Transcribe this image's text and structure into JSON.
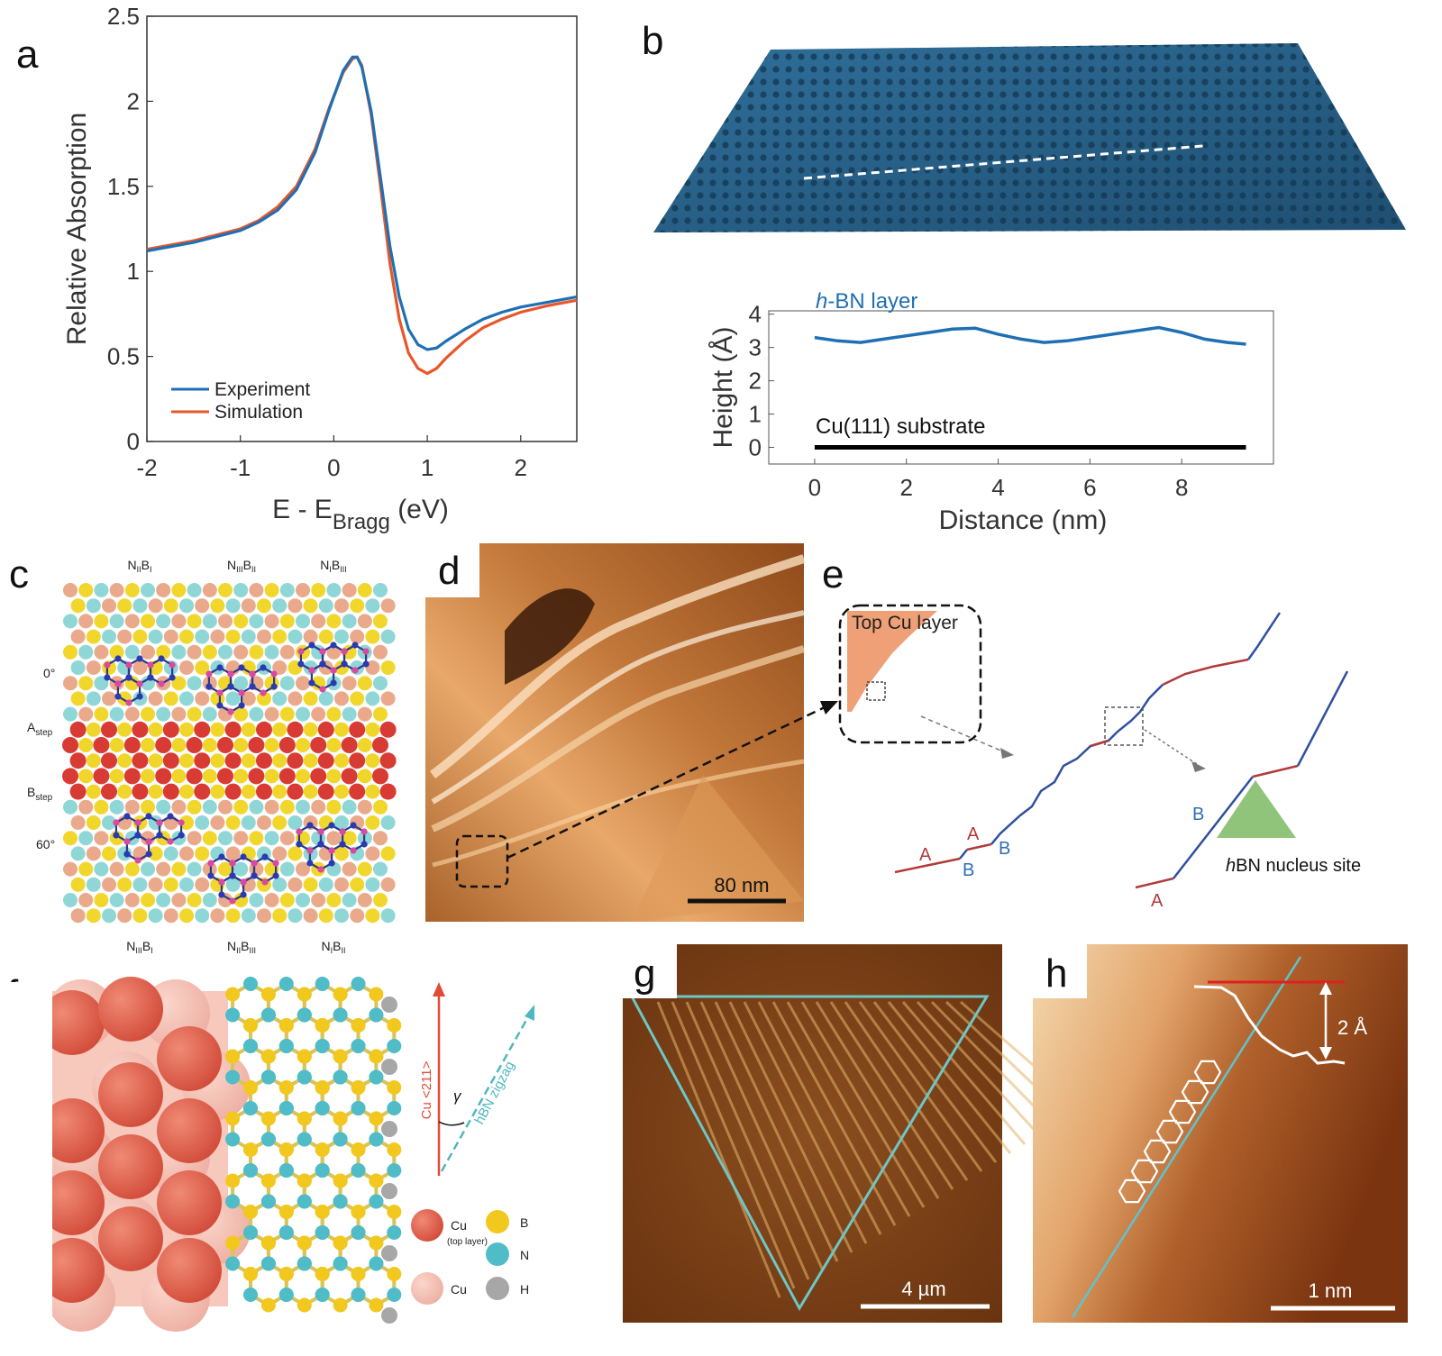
{
  "panels": {
    "a": {
      "letter": "a",
      "legend": {
        "experiment": "Experiment",
        "simulation": "Simulation"
      }
    },
    "b": {
      "letter": "b",
      "hbn_label_italic": "h",
      "hbn_label_rest": "-BN layer",
      "substrate_label": "Cu(111) substrate"
    },
    "c": {
      "letter": "c",
      "top_labels": [
        {
          "N": "N",
          "Nsub": "II",
          "B": "B",
          "Bsub": "I"
        },
        {
          "N": "N",
          "Nsub": "III",
          "B": "B",
          "Bsub": "II"
        },
        {
          "N": "N",
          "Nsub": "I",
          "B": "B",
          "Bsub": "III"
        }
      ],
      "bottom_labels": [
        {
          "N": "N",
          "Nsub": "III",
          "B": "B",
          "Bsub": "I"
        },
        {
          "N": "N",
          "Nsub": "II",
          "B": "B",
          "Bsub": "III"
        },
        {
          "N": "N",
          "Nsub": "I",
          "B": "B",
          "Bsub": "II"
        }
      ],
      "side_labels": {
        "deg0": "0°",
        "astep_main": "A",
        "astep_sub": "step",
        "bstep_main": "B",
        "bstep_sub": "step",
        "deg60": "60°"
      }
    },
    "d": {
      "letter": "d",
      "scalebar": "80 nm"
    },
    "e": {
      "letter": "e",
      "top_cu": "Top Cu layer",
      "labels": [
        "A",
        "A",
        "B",
        "B",
        "B",
        "A"
      ],
      "nucleus_italic": "h",
      "nucleus_rest": "BN nucleus site"
    },
    "f": {
      "letter": "f",
      "arrow_cu": "Cu <211>",
      "arrow_hbn": "hBN zigzag",
      "gamma": "γ",
      "legend": {
        "cu_top": "Cu",
        "cu_top_note": "(top layer)",
        "b": "B",
        "n": "N",
        "cu": "Cu",
        "h": "H"
      }
    },
    "g": {
      "letter": "g",
      "scalebar": "4 µm"
    },
    "h": {
      "letter": "h",
      "step": "2 Å",
      "scalebar": "1 nm"
    }
  },
  "chart_data": [
    {
      "panel": "a",
      "type": "line",
      "xlabel_main": "E - E",
      "xlabel_sub": "Bragg",
      "xlabel_unit": " (eV)",
      "ylabel": "Relative Absorption",
      "xlim": [
        -2,
        2.6
      ],
      "ylim": [
        0,
        2.5
      ],
      "xticks": [
        -2,
        -1,
        0,
        1,
        2
      ],
      "yticks": [
        0,
        0.5,
        1,
        1.5,
        2,
        2.5
      ],
      "ytick_labels": [
        "0",
        "0.5",
        "1",
        "1.5",
        "2",
        "2.5"
      ],
      "legend_position": "bottom-left",
      "colors": {
        "experiment": "#1f6fb4",
        "simulation": "#e8562a"
      },
      "series": [
        {
          "name": "Experiment",
          "x": [
            -2,
            -1.5,
            -1,
            -0.8,
            -0.6,
            -0.4,
            -0.2,
            -0.05,
            0.1,
            0.2,
            0.25,
            0.3,
            0.4,
            0.5,
            0.6,
            0.7,
            0.8,
            0.9,
            1.0,
            1.1,
            1.2,
            1.4,
            1.6,
            1.8,
            2.0,
            2.3,
            2.6
          ],
          "y": [
            1.12,
            1.17,
            1.24,
            1.29,
            1.36,
            1.48,
            1.7,
            1.95,
            2.18,
            2.26,
            2.26,
            2.2,
            1.94,
            1.55,
            1.15,
            0.85,
            0.66,
            0.57,
            0.54,
            0.55,
            0.59,
            0.66,
            0.72,
            0.76,
            0.79,
            0.82,
            0.85
          ]
        },
        {
          "name": "Simulation",
          "x": [
            -2,
            -1.5,
            -1,
            -0.8,
            -0.6,
            -0.4,
            -0.2,
            -0.05,
            0.1,
            0.2,
            0.25,
            0.3,
            0.4,
            0.5,
            0.6,
            0.7,
            0.8,
            0.9,
            1.0,
            1.1,
            1.2,
            1.4,
            1.6,
            1.8,
            2.0,
            2.3,
            2.6
          ],
          "y": [
            1.13,
            1.18,
            1.25,
            1.3,
            1.38,
            1.5,
            1.72,
            1.96,
            2.17,
            2.25,
            2.26,
            2.21,
            1.92,
            1.5,
            1.05,
            0.72,
            0.52,
            0.43,
            0.4,
            0.43,
            0.49,
            0.59,
            0.67,
            0.72,
            0.76,
            0.8,
            0.83
          ]
        }
      ]
    },
    {
      "panel": "b",
      "type": "line",
      "xlabel": "Distance (nm)",
      "ylabel": "Height (Å)",
      "xlim": [
        -1,
        10
      ],
      "ylim": [
        -0.5,
        4.1
      ],
      "xticks": [
        0,
        2,
        4,
        6,
        8
      ],
      "yticks": [
        0,
        1,
        2,
        3,
        4
      ],
      "colors": {
        "hbn": "#1f6fb4",
        "cu": "#000000"
      },
      "series": [
        {
          "name": "h-BN layer",
          "x": [
            0,
            0.5,
            1.0,
            1.5,
            2.0,
            2.5,
            3.0,
            3.5,
            4.0,
            4.5,
            5.0,
            5.5,
            6.0,
            6.5,
            7.0,
            7.5,
            8.0,
            8.5,
            9.0,
            9.4
          ],
          "y": [
            3.3,
            3.2,
            3.15,
            3.25,
            3.35,
            3.45,
            3.55,
            3.58,
            3.4,
            3.25,
            3.15,
            3.2,
            3.3,
            3.4,
            3.5,
            3.6,
            3.45,
            3.25,
            3.15,
            3.1
          ]
        },
        {
          "name": "Cu(111) substrate",
          "x": [
            0,
            9.4
          ],
          "y": [
            0,
            0
          ]
        }
      ]
    }
  ]
}
